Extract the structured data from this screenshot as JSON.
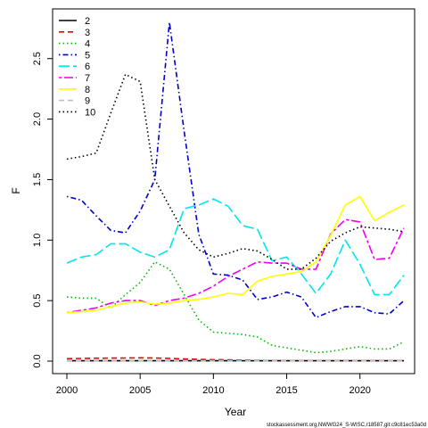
{
  "chart_data": {
    "type": "line",
    "title": "",
    "xlabel": "Year",
    "ylabel": "F",
    "xlim": [
      2000,
      2023
    ],
    "ylim": [
      0,
      2.8
    ],
    "xticks": [
      2000,
      2005,
      2010,
      2015,
      2020
    ],
    "yticks": [
      0.0,
      0.5,
      1.0,
      1.5,
      2.0,
      2.5
    ],
    "ytick_labels": [
      "0.0",
      "0.5",
      "1.0",
      "1.5",
      "2.0",
      "2.5"
    ],
    "grid": false,
    "legend_position": "top-left",
    "x": [
      2000,
      2001,
      2002,
      2003,
      2004,
      2005,
      2006,
      2007,
      2008,
      2009,
      2010,
      2011,
      2012,
      2013,
      2014,
      2015,
      2016,
      2017,
      2018,
      2019,
      2020,
      2021,
      2022,
      2023
    ],
    "series": [
      {
        "name": "2",
        "color": "#000000",
        "dash": "solid",
        "values": [
          0.003,
          0.003,
          0.003,
          0.003,
          0.003,
          0.003,
          0.003,
          0.003,
          0.003,
          0.003,
          0.003,
          0.003,
          0.003,
          0.003,
          0.003,
          0.003,
          0.003,
          0.003,
          0.003,
          0.003,
          0.003,
          0.003,
          0.003,
          0.003
        ]
      },
      {
        "name": "3",
        "color": "#ee0000",
        "dash": "dashed",
        "values": [
          0.02,
          0.022,
          0.024,
          0.025,
          0.026,
          0.027,
          0.026,
          0.022,
          0.018,
          0.015,
          0.012,
          0.01,
          0.008,
          0.006,
          0.005,
          0.004,
          0.004,
          0.003,
          0.003,
          0.003,
          0.003,
          0.003,
          0.003,
          0.003
        ]
      },
      {
        "name": "4",
        "color": "#00bb00",
        "dash": "dotted",
        "values": [
          0.53,
          0.52,
          0.52,
          0.44,
          0.55,
          0.65,
          0.82,
          0.76,
          0.55,
          0.34,
          0.24,
          0.23,
          0.22,
          0.2,
          0.13,
          0.11,
          0.09,
          0.07,
          0.08,
          0.1,
          0.12,
          0.1,
          0.1,
          0.16
        ]
      },
      {
        "name": "5",
        "color": "#0000cc",
        "dash": "dashdot",
        "values": [
          1.36,
          1.33,
          1.2,
          1.08,
          1.06,
          1.24,
          1.5,
          2.8,
          1.9,
          1.05,
          0.72,
          0.71,
          0.67,
          0.51,
          0.53,
          0.57,
          0.53,
          0.36,
          0.41,
          0.45,
          0.45,
          0.4,
          0.39,
          0.5
        ]
      },
      {
        "name": "6",
        "color": "#00e5ee",
        "dash": "longdash",
        "values": [
          0.81,
          0.86,
          0.88,
          0.97,
          0.97,
          0.9,
          0.86,
          0.92,
          1.26,
          1.29,
          1.34,
          1.28,
          1.12,
          1.09,
          0.83,
          0.86,
          0.72,
          0.56,
          0.72,
          1.0,
          0.8,
          0.55,
          0.55,
          0.71
        ]
      },
      {
        "name": "7",
        "color": "#ee00ee",
        "dash": "twodash",
        "values": [
          0.4,
          0.42,
          0.44,
          0.48,
          0.5,
          0.5,
          0.46,
          0.5,
          0.52,
          0.56,
          0.62,
          0.7,
          0.76,
          0.82,
          0.81,
          0.81,
          0.76,
          0.76,
          1.05,
          1.17,
          1.15,
          0.84,
          0.85,
          1.1
        ]
      },
      {
        "name": "8",
        "color": "#ffff00",
        "dash": "solid",
        "values": [
          0.4,
          0.41,
          0.42,
          0.45,
          0.48,
          0.49,
          0.47,
          0.48,
          0.5,
          0.51,
          0.53,
          0.56,
          0.55,
          0.66,
          0.7,
          0.72,
          0.74,
          0.82,
          1.04,
          1.29,
          1.36,
          1.16,
          1.23,
          1.29
        ]
      },
      {
        "name": "9",
        "color": "#bebebe",
        "dash": "dashed",
        "values": [
          0.003,
          0.003,
          0.003,
          0.003,
          0.003,
          0.003,
          0.003,
          0.003,
          0.003,
          0.003,
          0.003,
          0.003,
          0.003,
          0.003,
          0.003,
          0.003,
          0.003,
          0.003,
          0.003,
          0.003,
          0.003,
          0.003,
          0.003,
          0.003
        ]
      },
      {
        "name": "10",
        "color": "#000000",
        "dash": "dotted",
        "values": [
          1.67,
          1.69,
          1.72,
          2.05,
          2.37,
          2.31,
          1.5,
          1.28,
          1.06,
          0.92,
          0.86,
          0.89,
          0.93,
          0.91,
          0.84,
          0.76,
          0.76,
          0.85,
          0.99,
          1.06,
          1.11,
          1.1,
          1.09,
          1.07
        ]
      }
    ]
  },
  "footer": "stockassessment.org,NWWG24_S-WISC,r18587,git:c9c81ec53a0d"
}
